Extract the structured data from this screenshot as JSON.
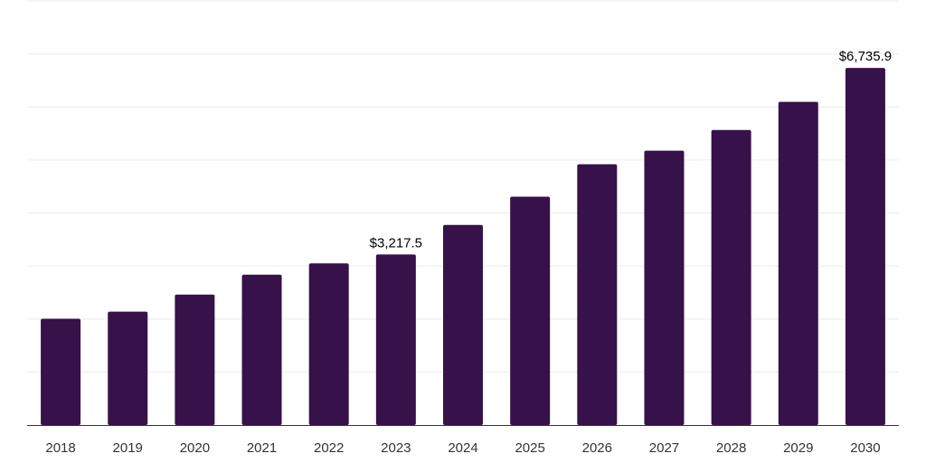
{
  "chart_data": {
    "type": "bar",
    "categories": [
      "2018",
      "2019",
      "2020",
      "2021",
      "2022",
      "2023",
      "2024",
      "2025",
      "2026",
      "2027",
      "2028",
      "2029",
      "2030"
    ],
    "values": [
      2005,
      2139,
      2460,
      2836,
      3050,
      3217.5,
      3773,
      4307,
      4919,
      5174,
      5564,
      6096,
      6735.9
    ],
    "data_labels": [
      {
        "index": 5,
        "text": "$3,217.5"
      },
      {
        "index": 12,
        "text": "$6,735.9"
      }
    ],
    "title": "",
    "xlabel": "",
    "ylabel": "",
    "ylim": [
      0,
      8000
    ],
    "grid": true,
    "legend": "none",
    "bar_color": "#371149",
    "grid_color": "#ececec",
    "axis_color": "#333333"
  }
}
